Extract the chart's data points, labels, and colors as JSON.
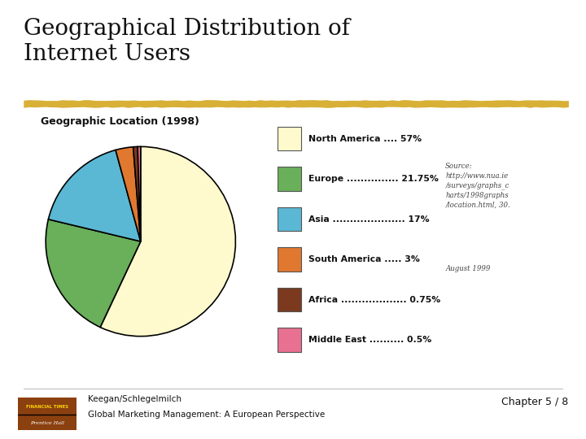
{
  "title": "Geographical Distribution of\nInternet Users",
  "subtitle": "Geographic Location (1998)",
  "labels": [
    "North America",
    "Europe",
    "Asia",
    "South America",
    "Africa",
    "Middle East"
  ],
  "values": [
    57.0,
    21.75,
    17.0,
    3.0,
    0.75,
    0.5
  ],
  "colors": [
    "#FFFACD",
    "#6AAF5A",
    "#5BB8D4",
    "#E07830",
    "#7B3A1E",
    "#E87090"
  ],
  "legend_labels": [
    "North America .... 57%",
    "Europe ............... 21.75%",
    "Asia ..................... 17%",
    "South America ..... 3%",
    "Africa ................... 0.75%",
    "Middle East .......... 0.5%"
  ],
  "source_text": "Source:\nhttp://www.nua.ie\n/surveys/graphs_c\nharts/1998graphs\n/location.html, 30.",
  "date_text": "August 1999",
  "footer_left1": "Keegan/Schlegelmilch",
  "footer_left2": "Global Marketing Management: A European Perspective",
  "footer_right": "Chapter 5 / 8",
  "highlight_color": "#D4A820",
  "bg_color": "#FFFFFF",
  "startangle": 90
}
